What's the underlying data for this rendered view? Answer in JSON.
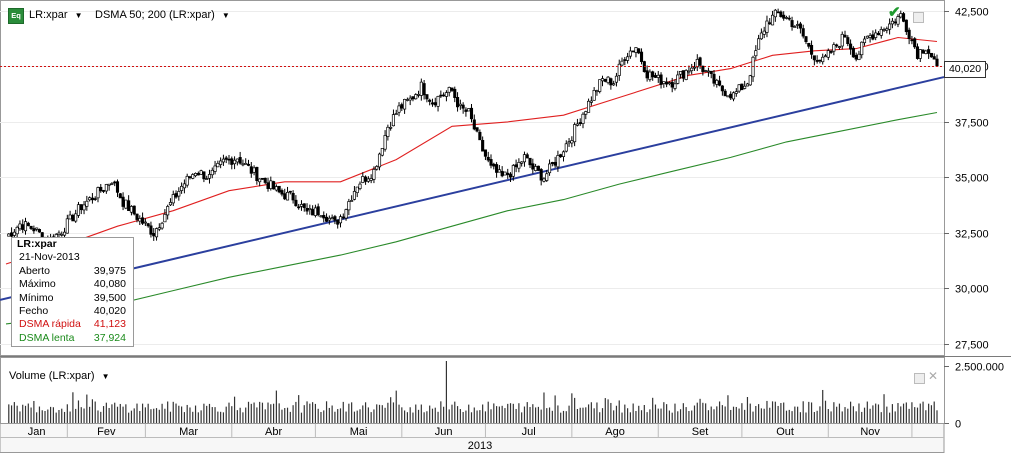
{
  "header": {
    "symbol_icon_label": "Eq",
    "symbol": "LR:xpar",
    "indicator": "DSMA 50; 200 (LR:xpar)"
  },
  "volume_pane": {
    "title": "Volume (LR:xpar)"
  },
  "tooltip": {
    "title": "LR:xpar",
    "date": "21-Nov-2013",
    "rows": [
      {
        "label": "Aberto",
        "value": "39,975",
        "color": "#000000"
      },
      {
        "label": "Máximo",
        "value": "40,080",
        "color": "#000000"
      },
      {
        "label": "Mínimo",
        "value": "39,500",
        "color": "#000000"
      },
      {
        "label": "Fecho",
        "value": "40,020",
        "color": "#000000"
      },
      {
        "label": "DSMA rápida",
        "value": "41,123",
        "color": "#d01010"
      },
      {
        "label": "DSMA lenta",
        "value": "37,924",
        "color": "#1a8a1a"
      }
    ]
  },
  "last_price_label": "40,020",
  "chart_data": {
    "type": "candlestick",
    "price_axis": {
      "range": [
        27000,
        42900
      ],
      "ticks": [
        27500,
        30000,
        32500,
        35000,
        37500,
        40000,
        42500
      ],
      "tick_labels": [
        "27,500",
        "30,000",
        "32,500",
        "35,000",
        "37,500",
        "40,000",
        "42,500"
      ]
    },
    "volume_axis": {
      "range": [
        0,
        2700000
      ],
      "ticks": [
        0,
        2500000
      ],
      "tick_labels": [
        "0",
        "2.500.000"
      ]
    },
    "months": [
      "Jan",
      "Fev",
      "Mar",
      "Abr",
      "Mai",
      "Jun",
      "Jul",
      "Ago",
      "Set",
      "Out",
      "Nov"
    ],
    "year": "2013",
    "last_close": 40020,
    "close_path": [
      [
        0,
        32300
      ],
      [
        5,
        32900
      ],
      [
        10,
        32700
      ],
      [
        15,
        32100
      ],
      [
        20,
        32600
      ],
      [
        27,
        33700
      ],
      [
        33,
        34300
      ],
      [
        38,
        34900
      ],
      [
        42,
        33900
      ],
      [
        48,
        33100
      ],
      [
        53,
        32500
      ],
      [
        58,
        33600
      ],
      [
        63,
        34600
      ],
      [
        68,
        35300
      ],
      [
        73,
        35000
      ],
      [
        78,
        35700
      ],
      [
        83,
        35900
      ],
      [
        88,
        35300
      ],
      [
        93,
        34800
      ],
      [
        98,
        34300
      ],
      [
        103,
        34100
      ],
      [
        108,
        33400
      ],
      [
        113,
        33500
      ],
      [
        118,
        32900
      ],
      [
        121,
        33400
      ],
      [
        126,
        34700
      ],
      [
        132,
        35300
      ],
      [
        137,
        37300
      ],
      [
        141,
        38100
      ],
      [
        145,
        38500
      ],
      [
        149,
        39100
      ],
      [
        153,
        38400
      ],
      [
        156,
        38700
      ],
      [
        160,
        38900
      ],
      [
        163,
        38100
      ],
      [
        166,
        37900
      ],
      [
        170,
        36500
      ],
      [
        174,
        35400
      ],
      [
        178,
        35000
      ],
      [
        182,
        35300
      ],
      [
        186,
        35900
      ],
      [
        189,
        35400
      ],
      [
        193,
        35000
      ],
      [
        198,
        35900
      ],
      [
        203,
        36900
      ],
      [
        207,
        37900
      ],
      [
        211,
        38800
      ],
      [
        214,
        39400
      ],
      [
        218,
        39300
      ],
      [
        222,
        40500
      ],
      [
        226,
        40900
      ],
      [
        230,
        39700
      ],
      [
        234,
        39400
      ],
      [
        239,
        39300
      ],
      [
        243,
        39700
      ],
      [
        248,
        40200
      ],
      [
        252,
        39600
      ],
      [
        256,
        39000
      ],
      [
        261,
        38700
      ],
      [
        266,
        39300
      ],
      [
        270,
        41100
      ],
      [
        273,
        42000
      ],
      [
        277,
        42400
      ],
      [
        281,
        42100
      ],
      [
        285,
        41600
      ],
      [
        289,
        40600
      ],
      [
        293,
        40200
      ],
      [
        297,
        40800
      ],
      [
        301,
        41400
      ],
      [
        305,
        40400
      ],
      [
        309,
        41300
      ],
      [
        313,
        41600
      ],
      [
        317,
        41900
      ],
      [
        321,
        42300
      ],
      [
        324,
        41500
      ],
      [
        327,
        40600
      ],
      [
        330,
        40900
      ],
      [
        334,
        40020
      ]
    ],
    "trendline": [
      [
        0,
        29480
      ],
      [
        334,
        39520
      ]
    ],
    "dsma_fast": [
      [
        0,
        31100
      ],
      [
        20,
        31900
      ],
      [
        40,
        32800
      ],
      [
        60,
        33500
      ],
      [
        80,
        34400
      ],
      [
        100,
        34800
      ],
      [
        120,
        34800
      ],
      [
        140,
        35800
      ],
      [
        160,
        37300
      ],
      [
        180,
        37500
      ],
      [
        200,
        37800
      ],
      [
        220,
        38600
      ],
      [
        245,
        39600
      ],
      [
        260,
        39900
      ],
      [
        275,
        40500
      ],
      [
        290,
        40700
      ],
      [
        305,
        40800
      ],
      [
        320,
        41300
      ],
      [
        334,
        41123
      ]
    ],
    "dsma_slow": [
      [
        0,
        28400
      ],
      [
        20,
        28700
      ],
      [
        40,
        29300
      ],
      [
        60,
        29900
      ],
      [
        80,
        30500
      ],
      [
        100,
        31000
      ],
      [
        120,
        31500
      ],
      [
        140,
        32100
      ],
      [
        160,
        32800
      ],
      [
        180,
        33500
      ],
      [
        200,
        34000
      ],
      [
        220,
        34700
      ],
      [
        240,
        35300
      ],
      [
        260,
        35900
      ],
      [
        280,
        36600
      ],
      [
        300,
        37100
      ],
      [
        320,
        37600
      ],
      [
        334,
        37924
      ]
    ],
    "volume_spike": {
      "day": 158,
      "value": 2700000
    }
  }
}
